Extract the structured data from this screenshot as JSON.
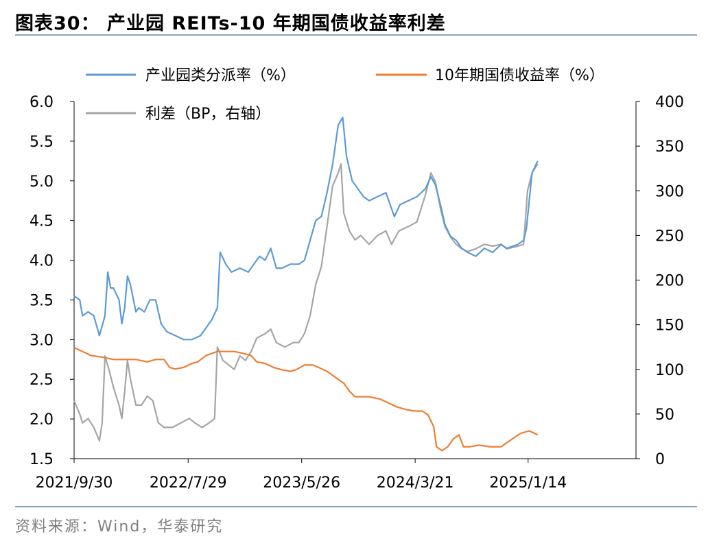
{
  "header": {
    "title": "图表30：  产业园 REITs-10 年期国债收益率利差"
  },
  "footer": {
    "source": "资料来源：Wind，华泰研究"
  },
  "chart_data": {
    "type": "line",
    "title": "产业园 REITs-10 年期国债收益率利差",
    "x_tick_labels": [
      "2021/9/30",
      "2022/7/29",
      "2023/5/26",
      "2024/3/21",
      "2025/1/14"
    ],
    "x_tick_values": [
      0,
      203,
      405,
      607,
      808
    ],
    "x_range": [
      0,
      1000
    ],
    "y_left": {
      "min": 1.5,
      "max": 6.0,
      "ticks": [
        "6.0",
        "5.5",
        "5.0",
        "4.5",
        "4.0",
        "3.5",
        "3.0",
        "2.5",
        "2.0",
        "1.5"
      ]
    },
    "y_right": {
      "min": 0,
      "max": 400,
      "ticks": [
        "400",
        "350",
        "300",
        "250",
        "200",
        "150",
        "100",
        "50",
        "0"
      ]
    },
    "legend": [
      "产业园类分派率（%）",
      "10年期国债收益率（%）",
      "利差（BP，右轴）"
    ],
    "series": [
      {
        "name": "产业园类分派率（%）",
        "axis": "left",
        "color": "#5b9bd5",
        "points": [
          [
            0,
            3.55
          ],
          [
            10,
            3.5
          ],
          [
            15,
            3.3
          ],
          [
            25,
            3.35
          ],
          [
            35,
            3.3
          ],
          [
            45,
            3.05
          ],
          [
            55,
            3.3
          ],
          [
            60,
            3.85
          ],
          [
            65,
            3.65
          ],
          [
            70,
            3.65
          ],
          [
            80,
            3.5
          ],
          [
            85,
            3.2
          ],
          [
            90,
            3.4
          ],
          [
            95,
            3.8
          ],
          [
            100,
            3.7
          ],
          [
            110,
            3.35
          ],
          [
            115,
            3.4
          ],
          [
            125,
            3.35
          ],
          [
            135,
            3.5
          ],
          [
            145,
            3.5
          ],
          [
            155,
            3.2
          ],
          [
            165,
            3.1
          ],
          [
            180,
            3.05
          ],
          [
            195,
            3.0
          ],
          [
            210,
            3.0
          ],
          [
            225,
            3.05
          ],
          [
            235,
            3.15
          ],
          [
            245,
            3.25
          ],
          [
            255,
            3.4
          ],
          [
            260,
            4.1
          ],
          [
            270,
            3.95
          ],
          [
            280,
            3.85
          ],
          [
            295,
            3.9
          ],
          [
            310,
            3.85
          ],
          [
            320,
            3.95
          ],
          [
            330,
            4.05
          ],
          [
            340,
            4.0
          ],
          [
            350,
            4.15
          ],
          [
            360,
            3.9
          ],
          [
            370,
            3.9
          ],
          [
            385,
            3.95
          ],
          [
            400,
            3.95
          ],
          [
            410,
            4.0
          ],
          [
            420,
            4.25
          ],
          [
            430,
            4.5
          ],
          [
            440,
            4.55
          ],
          [
            450,
            4.85
          ],
          [
            460,
            5.2
          ],
          [
            470,
            5.7
          ],
          [
            478,
            5.8
          ],
          [
            485,
            5.3
          ],
          [
            495,
            5.0
          ],
          [
            505,
            4.9
          ],
          [
            515,
            4.8
          ],
          [
            525,
            4.75
          ],
          [
            540,
            4.8
          ],
          [
            555,
            4.85
          ],
          [
            570,
            4.55
          ],
          [
            580,
            4.7
          ],
          [
            595,
            4.75
          ],
          [
            610,
            4.8
          ],
          [
            625,
            4.9
          ],
          [
            635,
            5.05
          ],
          [
            643,
            4.95
          ],
          [
            652,
            4.7
          ],
          [
            660,
            4.45
          ],
          [
            670,
            4.3
          ],
          [
            680,
            4.25
          ],
          [
            690,
            4.15
          ],
          [
            700,
            4.1
          ],
          [
            715,
            4.05
          ],
          [
            730,
            4.15
          ],
          [
            745,
            4.1
          ],
          [
            760,
            4.2
          ],
          [
            770,
            4.15
          ],
          [
            790,
            4.2
          ],
          [
            800,
            4.25
          ],
          [
            805,
            4.4
          ],
          [
            815,
            5.1
          ],
          [
            825,
            5.25
          ]
        ]
      },
      {
        "name": "10年期国债收益率（%）",
        "axis": "left",
        "color": "#ed7d31",
        "points": [
          [
            0,
            2.9
          ],
          [
            15,
            2.85
          ],
          [
            30,
            2.8
          ],
          [
            50,
            2.78
          ],
          [
            70,
            2.75
          ],
          [
            90,
            2.75
          ],
          [
            110,
            2.75
          ],
          [
            130,
            2.72
          ],
          [
            145,
            2.75
          ],
          [
            160,
            2.75
          ],
          [
            170,
            2.65
          ],
          [
            180,
            2.63
          ],
          [
            195,
            2.65
          ],
          [
            210,
            2.7
          ],
          [
            220,
            2.72
          ],
          [
            235,
            2.8
          ],
          [
            255,
            2.85
          ],
          [
            270,
            2.85
          ],
          [
            285,
            2.85
          ],
          [
            305,
            2.82
          ],
          [
            315,
            2.8
          ],
          [
            325,
            2.72
          ],
          [
            340,
            2.7
          ],
          [
            355,
            2.65
          ],
          [
            370,
            2.62
          ],
          [
            385,
            2.6
          ],
          [
            395,
            2.62
          ],
          [
            410,
            2.68
          ],
          [
            425,
            2.68
          ],
          [
            435,
            2.65
          ],
          [
            450,
            2.6
          ],
          [
            460,
            2.55
          ],
          [
            470,
            2.5
          ],
          [
            480,
            2.45
          ],
          [
            490,
            2.35
          ],
          [
            500,
            2.28
          ],
          [
            510,
            2.28
          ],
          [
            525,
            2.28
          ],
          [
            545,
            2.25
          ],
          [
            560,
            2.2
          ],
          [
            575,
            2.15
          ],
          [
            590,
            2.12
          ],
          [
            605,
            2.1
          ],
          [
            620,
            2.1
          ],
          [
            630,
            2.05
          ],
          [
            640,
            1.9
          ],
          [
            645,
            1.65
          ],
          [
            655,
            1.6
          ],
          [
            665,
            1.65
          ],
          [
            675,
            1.75
          ],
          [
            685,
            1.8
          ],
          [
            693,
            1.65
          ],
          [
            705,
            1.65
          ],
          [
            720,
            1.67
          ],
          [
            740,
            1.65
          ],
          [
            760,
            1.65
          ],
          [
            780,
            1.75
          ],
          [
            795,
            1.82
          ],
          [
            810,
            1.85
          ],
          [
            825,
            1.8
          ]
        ]
      },
      {
        "name": "利差（BP，右轴）",
        "axis": "right",
        "color": "#a5a5a5",
        "points": [
          [
            0,
            65
          ],
          [
            10,
            50
          ],
          [
            15,
            40
          ],
          [
            25,
            45
          ],
          [
            35,
            35
          ],
          [
            45,
            20
          ],
          [
            50,
            40
          ],
          [
            55,
            115
          ],
          [
            62,
            100
          ],
          [
            70,
            80
          ],
          [
            80,
            60
          ],
          [
            85,
            45
          ],
          [
            90,
            75
          ],
          [
            95,
            110
          ],
          [
            100,
            90
          ],
          [
            110,
            60
          ],
          [
            120,
            60
          ],
          [
            130,
            70
          ],
          [
            140,
            65
          ],
          [
            150,
            40
          ],
          [
            160,
            35
          ],
          [
            175,
            35
          ],
          [
            190,
            40
          ],
          [
            205,
            45
          ],
          [
            215,
            40
          ],
          [
            228,
            35
          ],
          [
            240,
            40
          ],
          [
            250,
            45
          ],
          [
            255,
            125
          ],
          [
            265,
            110
          ],
          [
            275,
            105
          ],
          [
            285,
            100
          ],
          [
            295,
            115
          ],
          [
            305,
            110
          ],
          [
            315,
            120
          ],
          [
            325,
            135
          ],
          [
            340,
            140
          ],
          [
            350,
            145
          ],
          [
            360,
            130
          ],
          [
            375,
            125
          ],
          [
            390,
            130
          ],
          [
            400,
            130
          ],
          [
            410,
            140
          ],
          [
            420,
            160
          ],
          [
            430,
            195
          ],
          [
            440,
            215
          ],
          [
            450,
            260
          ],
          [
            460,
            305
          ],
          [
            470,
            320
          ],
          [
            475,
            330
          ],
          [
            480,
            275
          ],
          [
            490,
            255
          ],
          [
            500,
            245
          ],
          [
            510,
            250
          ],
          [
            525,
            240
          ],
          [
            540,
            250
          ],
          [
            555,
            255
          ],
          [
            565,
            240
          ],
          [
            578,
            255
          ],
          [
            595,
            260
          ],
          [
            610,
            265
          ],
          [
            625,
            295
          ],
          [
            635,
            320
          ],
          [
            643,
            310
          ],
          [
            652,
            280
          ],
          [
            660,
            260
          ],
          [
            670,
            248
          ],
          [
            680,
            240
          ],
          [
            690,
            235
          ],
          [
            700,
            232
          ],
          [
            715,
            235
          ],
          [
            730,
            240
          ],
          [
            745,
            238
          ],
          [
            760,
            240
          ],
          [
            770,
            235
          ],
          [
            790,
            238
          ],
          [
            800,
            240
          ],
          [
            807,
            300
          ],
          [
            815,
            320
          ],
          [
            825,
            330
          ]
        ]
      }
    ]
  }
}
